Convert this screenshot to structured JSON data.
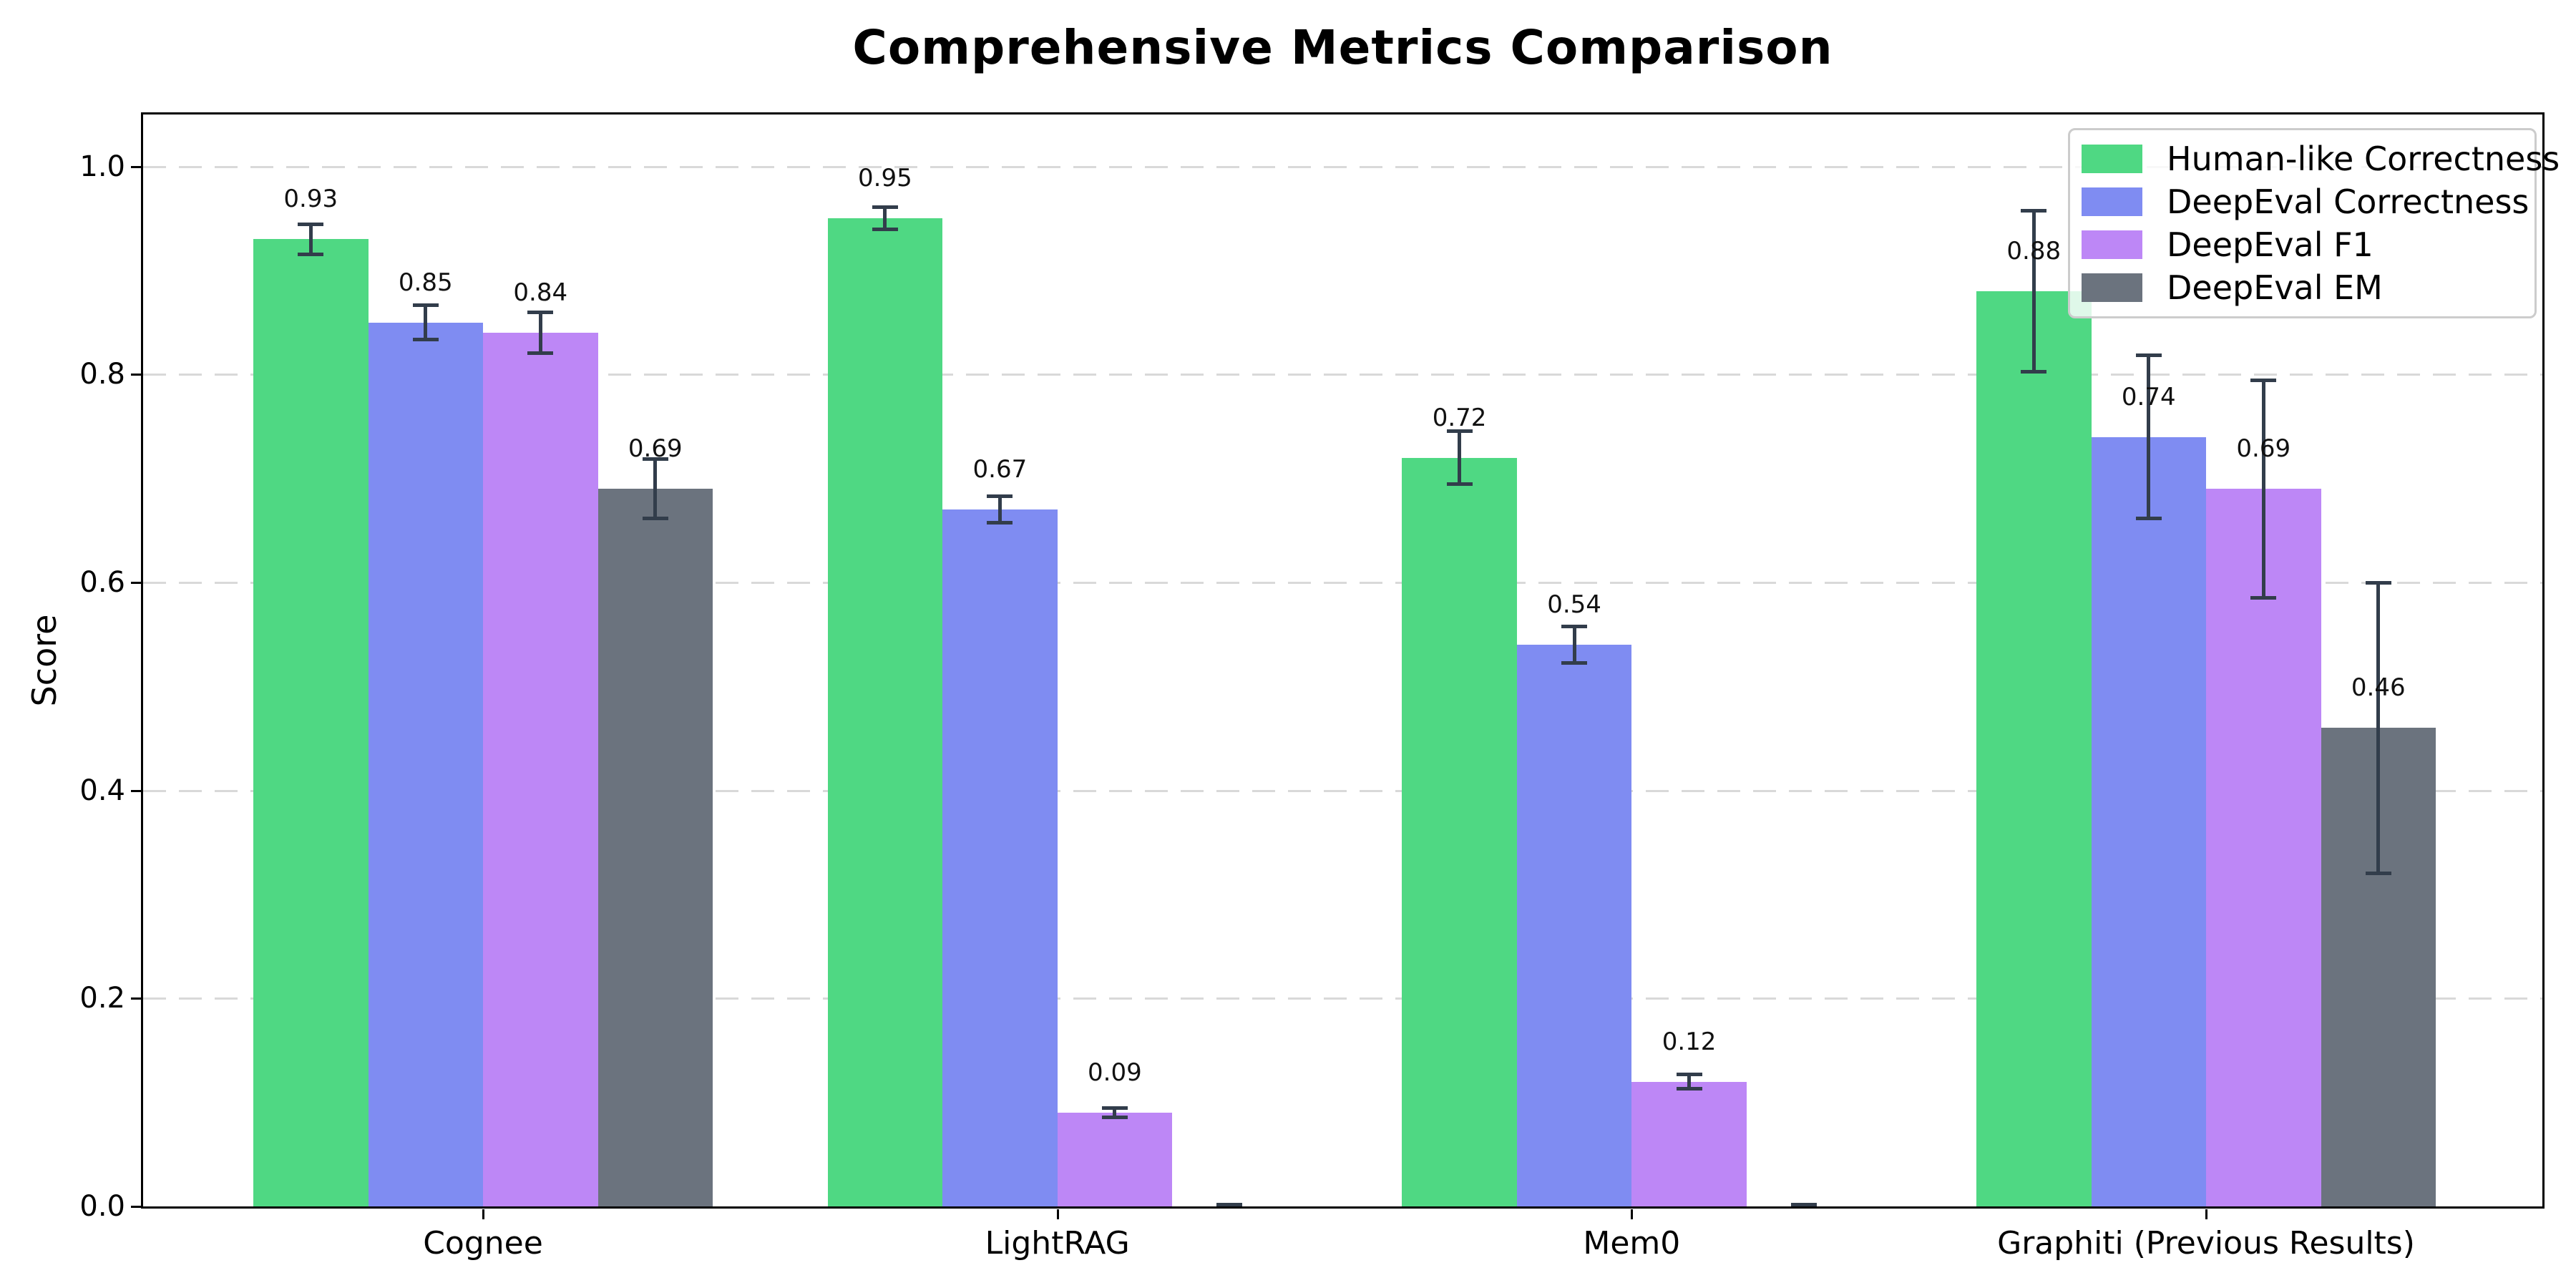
{
  "title": "Comprehensive Metrics Comparison",
  "ylabel": "Score",
  "chart_data": {
    "type": "bar",
    "title": "Comprehensive Metrics Comparison",
    "xlabel": "",
    "ylabel": "Score",
    "ylim": [
      0,
      1.05
    ],
    "yticks": [
      "0.0",
      "0.2",
      "0.4",
      "0.6",
      "0.8",
      "1.0"
    ],
    "grid": "horizontal-dashed",
    "legend_position": "upper-right",
    "categories": [
      "Cognee",
      "LightRAG",
      "Mem0",
      "Graphiti (Previous Results)"
    ],
    "series": [
      {
        "name": "Human-like Correctness",
        "color": "#4fd883",
        "values": [
          0.93,
          0.95,
          0.72,
          0.88
        ],
        "errors": [
          0.015,
          0.011,
          0.026,
          0.078
        ],
        "labels": [
          "0.93",
          "0.95",
          "0.72",
          "0.88"
        ]
      },
      {
        "name": "DeepEval Correctness",
        "color": "#7f8cf2",
        "values": [
          0.85,
          0.67,
          0.54,
          0.74
        ],
        "errors": [
          0.017,
          0.013,
          0.018,
          0.079
        ],
        "labels": [
          "0.85",
          "0.67",
          "0.54",
          "0.74"
        ]
      },
      {
        "name": "DeepEval F1",
        "color": "#bd87f6",
        "values": [
          0.84,
          0.09,
          0.12,
          0.69
        ],
        "errors": [
          0.02,
          0.005,
          0.007,
          0.105
        ],
        "labels": [
          "0.84",
          "0.09",
          "0.12",
          "0.69"
        ]
      },
      {
        "name": "DeepEval EM",
        "color": "#6b737e",
        "values": [
          0.69,
          0.0,
          0.0,
          0.46
        ],
        "errors": [
          0.029,
          0.002,
          0.002,
          0.14
        ],
        "labels": [
          "0.69",
          "",
          "",
          "0.46"
        ]
      }
    ],
    "error_bar_color": "#323d4b",
    "grid_color": "#d9d9d9"
  }
}
